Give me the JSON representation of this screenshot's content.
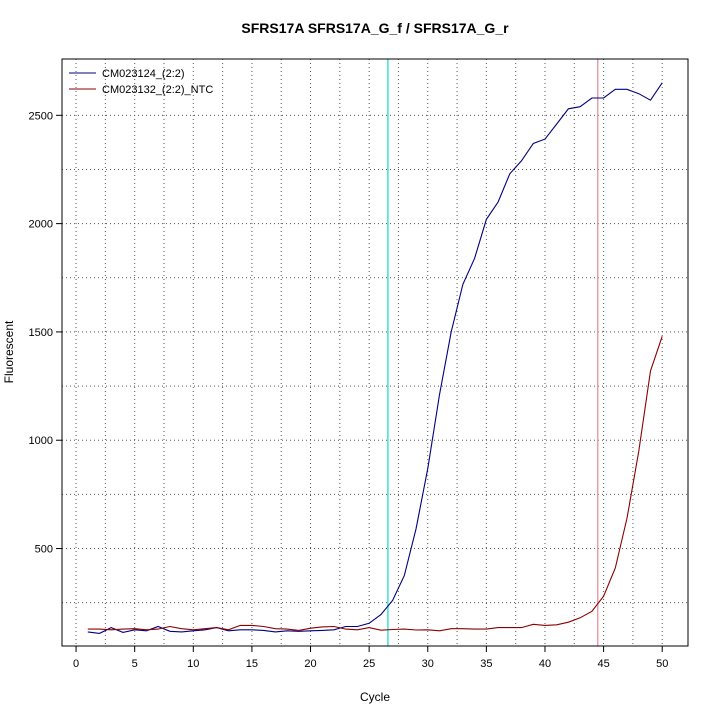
{
  "chart_data": {
    "type": "line",
    "title": "SFRS17A  SFRS17A_G_f / SFRS17A_G_r",
    "xlabel": "Cycle",
    "ylabel": "Fluorescent",
    "xlim": [
      -1.2,
      52.2
    ],
    "ylim": [
      50,
      2760
    ],
    "x_ticks": [
      0,
      5,
      10,
      15,
      20,
      25,
      30,
      35,
      40,
      45,
      50
    ],
    "y_ticks": [
      500,
      1000,
      1500,
      2000,
      2500
    ],
    "x_ticks_labels": [
      "0",
      "5",
      "10",
      "15",
      "20",
      "25",
      "30",
      "35",
      "40",
      "45",
      "50"
    ],
    "y_ticks_labels": [
      "500",
      "1000",
      "1500",
      "2000",
      "2500"
    ],
    "grid": true,
    "legend_position": "top-left",
    "threshold_lines": [
      {
        "x": 26.6,
        "color": "#40e0d0"
      },
      {
        "x": 44.5,
        "color": "#e8a0a8"
      }
    ],
    "series": [
      {
        "name": "CM023124_(2:2)",
        "color": "#000080",
        "x": [
          1,
          2,
          3,
          4,
          5,
          6,
          7,
          8,
          9,
          10,
          11,
          12,
          13,
          14,
          15,
          16,
          17,
          18,
          19,
          20,
          21,
          22,
          23,
          24,
          25,
          26,
          27,
          28,
          29,
          30,
          31,
          32,
          33,
          34,
          35,
          36,
          37,
          38,
          39,
          40,
          41,
          42,
          43,
          44,
          45,
          46,
          47,
          48,
          49,
          50
        ],
        "values": [
          115,
          108,
          135,
          113,
          125,
          120,
          140,
          118,
          115,
          120,
          125,
          135,
          120,
          125,
          125,
          122,
          115,
          120,
          118,
          120,
          122,
          125,
          140,
          140,
          155,
          195,
          260,
          375,
          590,
          870,
          1210,
          1500,
          1720,
          1840,
          2020,
          2100,
          2230,
          2290,
          2370,
          2390,
          2460,
          2530,
          2540,
          2580,
          2580,
          2620,
          2620,
          2600,
          2570,
          2650
        ]
      },
      {
        "name": "CM023132_(2:2)_NTC",
        "color": "#8b0000",
        "x": [
          1,
          2,
          3,
          4,
          5,
          6,
          7,
          8,
          9,
          10,
          11,
          12,
          13,
          14,
          15,
          16,
          17,
          18,
          19,
          20,
          21,
          22,
          23,
          24,
          25,
          26,
          27,
          28,
          29,
          30,
          31,
          32,
          33,
          34,
          35,
          36,
          37,
          38,
          39,
          40,
          41,
          42,
          43,
          44,
          45,
          46,
          47,
          48,
          49,
          50
        ],
        "values": [
          128,
          128,
          125,
          128,
          130,
          125,
          128,
          140,
          130,
          125,
          130,
          135,
          125,
          145,
          145,
          140,
          130,
          128,
          122,
          132,
          138,
          140,
          128,
          125,
          135,
          123,
          126,
          128,
          124,
          125,
          120,
          130,
          130,
          128,
          128,
          135,
          135,
          135,
          150,
          145,
          148,
          160,
          180,
          210,
          280,
          410,
          640,
          950,
          1320,
          1480
        ]
      }
    ]
  }
}
